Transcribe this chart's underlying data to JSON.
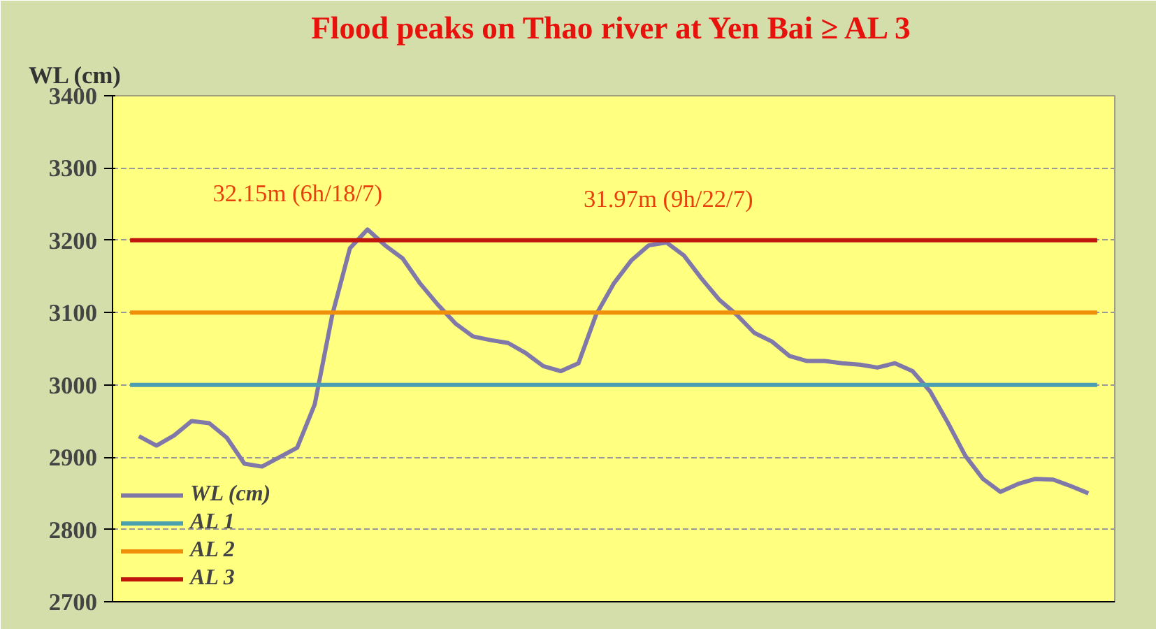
{
  "chart_data": {
    "type": "line",
    "title": "Flood peaks on Thao river at Yen Bai ≥ AL 3",
    "ylabel": "WL (cm)",
    "categories": [
      null,
      null,
      null,
      null,
      null,
      null,
      null,
      null,
      null,
      null,
      null,
      null,
      null,
      null,
      null,
      null,
      null,
      null,
      null,
      null,
      null,
      null,
      null,
      null,
      null,
      null,
      null,
      null,
      null,
      null,
      null,
      null,
      null,
      null,
      null,
      null,
      null,
      null,
      null,
      null,
      null,
      null,
      null,
      null,
      null,
      null,
      null,
      null,
      null,
      null,
      null,
      null,
      null,
      null,
      null
    ],
    "series": [
      {
        "name": "WL (cm)",
        "color": "#8078a8",
        "values": [
          2929,
          2916,
          2930,
          2950,
          2947,
          2927,
          2891,
          2887,
          2900,
          2913,
          2973,
          3097,
          3189,
          3215,
          3193,
          3175,
          3140,
          3111,
          3085,
          3067,
          3062,
          3058,
          3044,
          3026,
          3019,
          3030,
          3097,
          3140,
          3172,
          3193,
          3197,
          3179,
          3147,
          3118,
          3097,
          3072,
          3060,
          3040,
          3033,
          3033,
          3030,
          3028,
          3024,
          3030,
          3019,
          2991,
          2948,
          2902,
          2870,
          2852,
          2863,
          2870,
          2869,
          2860,
          2850
        ]
      }
    ],
    "ref_lines": [
      {
        "axis": "y",
        "value": 3000,
        "label": "AL 1",
        "color": "#4a9fb0"
      },
      {
        "axis": "y",
        "value": 3100,
        "label": "AL 2",
        "color": "#f0900a"
      },
      {
        "axis": "y",
        "value": 3200,
        "label": "AL 3",
        "color": "#c0160c"
      }
    ],
    "annotations": [
      "32.15m (6h/18/7)",
      "31.97m (9h/22/7)"
    ],
    "ylim": [
      2700,
      3400
    ],
    "yticks": [
      2700,
      2800,
      2900,
      3000,
      3100,
      3200,
      3300,
      3400
    ],
    "grid": "y",
    "legend": "bottom left",
    "tick_labels": "y",
    "marker": "none",
    "line_style": "solid"
  }
}
